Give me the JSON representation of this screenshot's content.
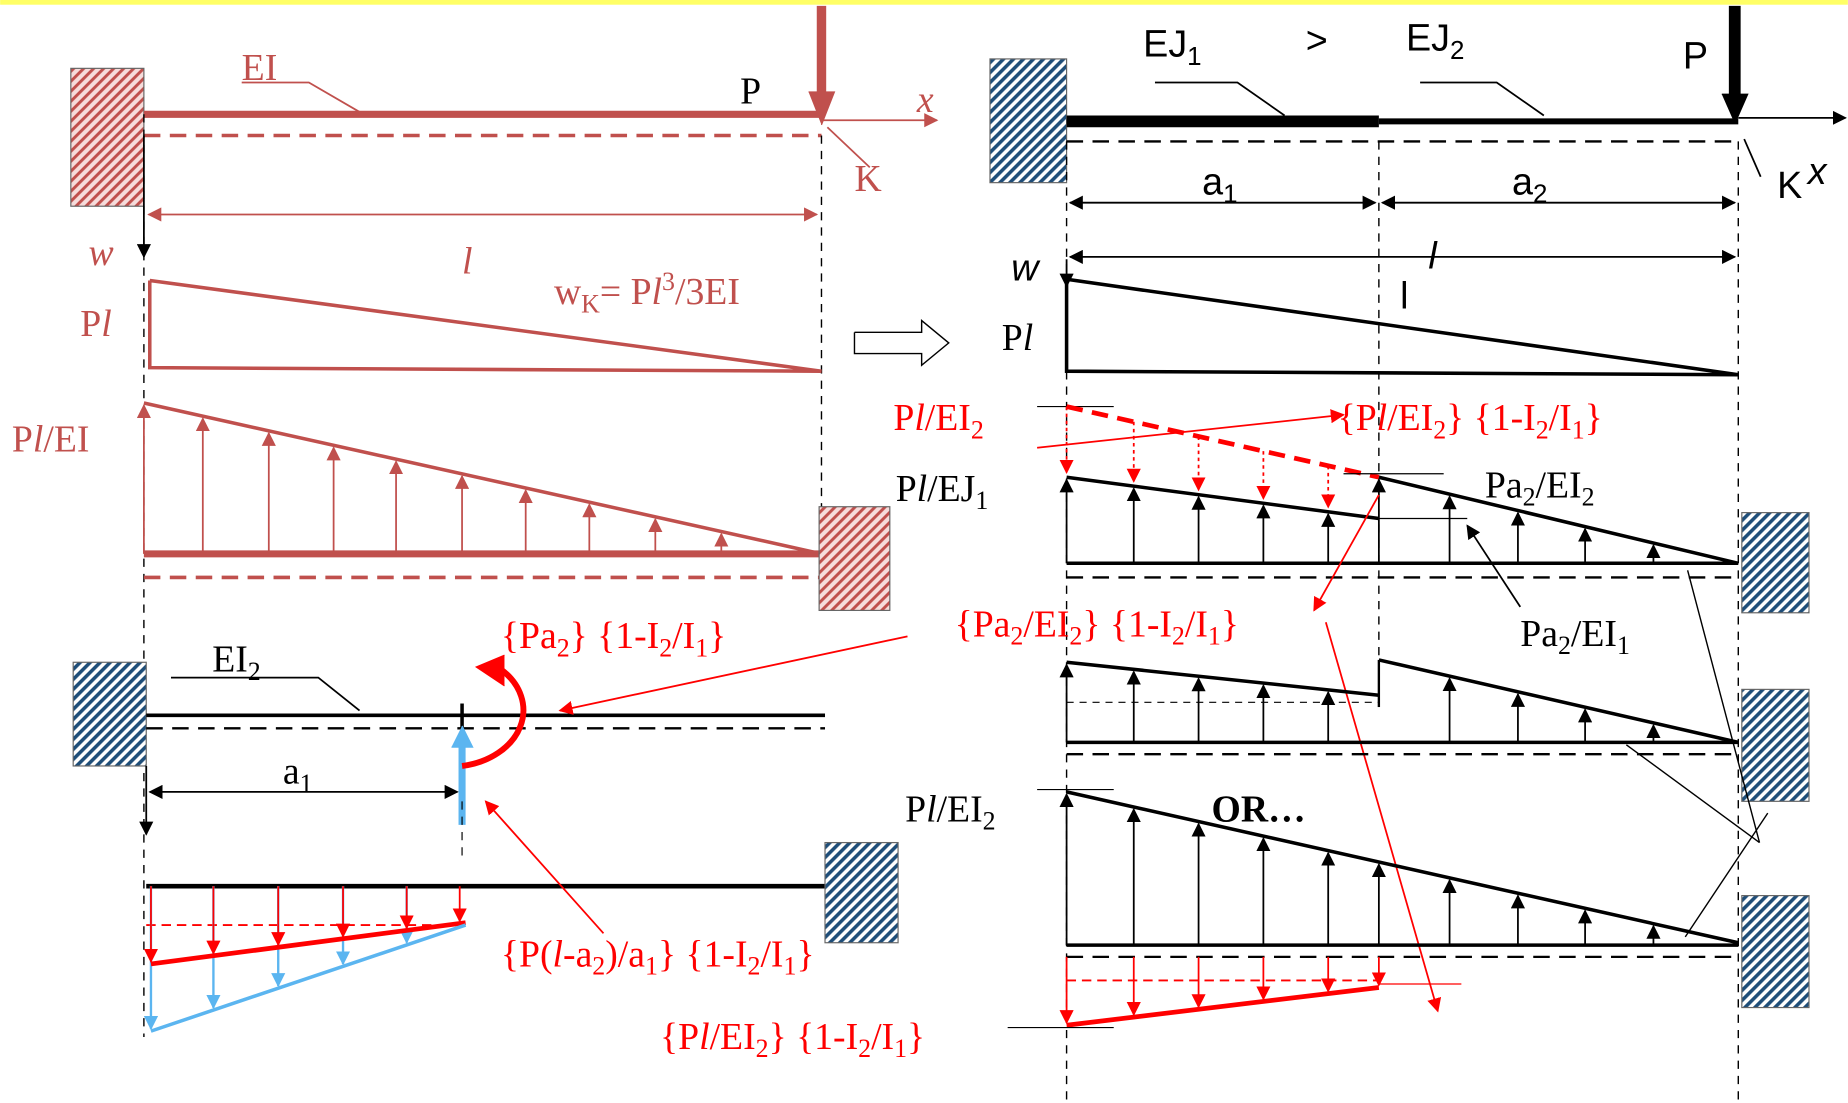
{
  "left": {
    "beam_label": "EI",
    "force": "P",
    "axis_x": "x",
    "point": "K",
    "axis_w": "w",
    "length": "l",
    "deflection": [
      "w",
      "K",
      "= P",
      "l",
      "3",
      "/3EI"
    ],
    "moment": [
      "P",
      "l"
    ],
    "curvature": [
      "P",
      "l",
      "/EI"
    ]
  },
  "lower": {
    "beam_label": [
      "EI",
      "2"
    ],
    "span": [
      "a",
      "1"
    ],
    "moment_load": [
      "{Pa",
      "2",
      "} {1-I",
      "2",
      "/I",
      "1",
      "}"
    ],
    "reaction": [
      "{P(",
      "l",
      "-a",
      "2",
      ")/a",
      "1",
      "} {1-I",
      "2",
      "/I",
      "1",
      "}"
    ]
  },
  "right": {
    "beam1": [
      "EJ",
      "1"
    ],
    "compare": ">",
    "beam2": [
      "EJ",
      "2"
    ],
    "force": "P",
    "point": "K",
    "axis_x": "x",
    "span1": [
      "a",
      "1"
    ],
    "span2": [
      "a",
      "2"
    ],
    "axis_w": "w",
    "length_italic": "l",
    "length": "l",
    "moment": [
      "P",
      "l"
    ],
    "curv_red": [
      "P",
      "l",
      "/EI",
      "2"
    ],
    "curv_red_bracket": [
      "{P",
      "l",
      "/EI",
      "2",
      "} {1-I",
      "2",
      "/I",
      "1",
      "}"
    ],
    "curv1": [
      "P",
      "l",
      "/EJ",
      "1"
    ],
    "jump_top": [
      "Pa",
      "2",
      "/EI",
      "2"
    ],
    "jump_bottom": [
      "Pa",
      "2",
      "/EI",
      "1"
    ],
    "jump_red": [
      "{Pa",
      "2",
      "/EI",
      "2",
      "} {1-I",
      "2",
      "/I",
      "1",
      "}"
    ],
    "curv2": [
      "P",
      "l",
      "/EI",
      "2"
    ],
    "or": "OR…",
    "correction": [
      "{P",
      "l",
      "/EI",
      "2",
      "} {1-I",
      "2",
      "/I",
      "1",
      "}"
    ]
  }
}
